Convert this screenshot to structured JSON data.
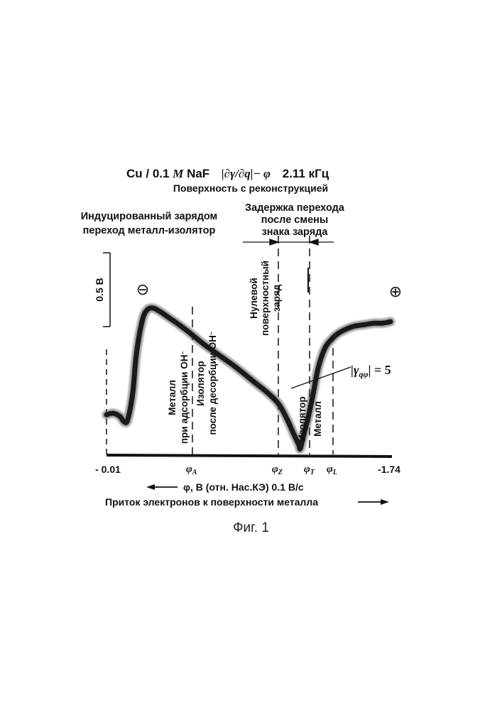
{
  "figure": {
    "title_material": "Cu / 0.1",
    "title_M": "M",
    "title_salt": "NaF",
    "title_formula": "|∂γ/∂q|− φ",
    "title_freq": "2.11 кГц",
    "subtitle": "Поверхность с реконструкцией",
    "caption": "Фиг. 1"
  },
  "annotations": {
    "left_header_1": "Индуцированный зарядом",
    "left_header_2": "переход металл-изолятор",
    "right_header_1": "Задержка перехода",
    "right_header_2": "после смены",
    "right_header_3": "знака заряда",
    "scale_bar": "0.5 В",
    "minus_sign": "⊖",
    "plus_sign": "⊕",
    "metal_adsorption_1": "Металл",
    "metal_adsorption_2": "при адсорбции OH",
    "insulator_desorption_1": "Изолятор",
    "insulator_desorption_2": "после десорбции OH",
    "ion_superscript": "−",
    "zero_charge_1": "Нулевой",
    "zero_charge_2": "поверхностный",
    "zero_charge_3": "заряд",
    "insulator_right": "Изолятор",
    "metal_right": "Металл",
    "gamma_label": "|γ",
    "gamma_sub": "qφ",
    "gamma_value": "| = 5"
  },
  "axis": {
    "left_tick": "- 0.01",
    "right_tick": "-1.74",
    "phi": "φ",
    "phi_A": "A",
    "phi_Z": "Z",
    "phi_T": "T",
    "phi_L": "L",
    "xlabel": "φ, В (отн. Нас.КЭ) 0.1 В/с",
    "electron_flow": "Приток электронов к поверхности металла"
  },
  "chart_data": {
    "type": "line",
    "xlabel": "φ, В (отн. Нас.КЭ) 0.1 В/с",
    "ylabel": "",
    "x_range": [
      -0.01,
      -1.74
    ],
    "scale_bar_y": 0.5,
    "scale_bar_unit": "В",
    "markers": [
      {
        "name": "φA",
        "x": -0.54
      },
      {
        "name": "φZ",
        "x": -1.19
      },
      {
        "name": "φT",
        "x": -1.31
      },
      {
        "name": "φL",
        "x": -1.42
      }
    ],
    "series": [
      {
        "x": [
          -0.01,
          -0.05,
          -0.09,
          -0.12,
          -0.14,
          -0.17,
          -0.19,
          -0.22,
          -0.25,
          -0.3,
          -0.4,
          -0.5,
          -0.6,
          -0.7,
          -0.8,
          -0.9,
          -1.0,
          -1.06,
          -1.11,
          -1.15,
          -1.18,
          -1.19,
          -1.21,
          -1.24,
          -1.27,
          -1.3,
          -1.34,
          -1.38,
          -1.42,
          -1.47,
          -1.52,
          -1.58,
          -1.64,
          -1.69,
          -1.74
        ],
        "y": [
          0.23,
          0.24,
          0.22,
          0.18,
          0.2,
          0.38,
          0.62,
          0.83,
          0.93,
          0.95,
          0.88,
          0.8,
          0.71,
          0.63,
          0.55,
          0.46,
          0.37,
          0.3,
          0.2,
          0.1,
          0.03,
          0.0,
          0.09,
          0.22,
          0.38,
          0.55,
          0.68,
          0.74,
          0.78,
          0.81,
          0.83,
          0.84,
          0.85,
          0.85,
          0.86
        ]
      }
    ]
  }
}
